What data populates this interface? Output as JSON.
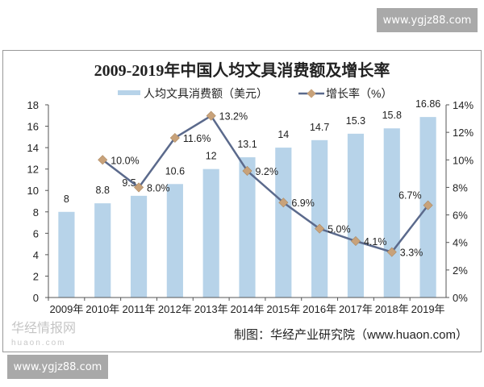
{
  "watermark": "www.ygjz88.com",
  "chart_data": {
    "type": "bar+line",
    "title": "2009-2019年中国人均文具消费额及增长率",
    "categories": [
      "2009年",
      "2010年",
      "2011年",
      "2012年",
      "2013年",
      "2014年",
      "2015年",
      "2016年",
      "2017年",
      "2018年",
      "2019年"
    ],
    "series": [
      {
        "name": "人均文具消费额（美元）",
        "type": "bar",
        "axis": "left",
        "color": "#b7d3e9",
        "values": [
          8,
          8.8,
          9.5,
          10.6,
          12,
          13.1,
          14,
          14.7,
          15.3,
          15.8,
          16.86
        ],
        "labels": [
          "8",
          "8.8",
          "9.5",
          "10.6",
          "12",
          "13.1",
          "14",
          "14.7",
          "15.3",
          "15.8",
          "16.86"
        ]
      },
      {
        "name": "增长率（%）",
        "type": "line",
        "axis": "right",
        "color": "#5b6a8c",
        "marker_color": "#c8a27a",
        "values": [
          null,
          10.0,
          8.0,
          11.6,
          13.2,
          9.2,
          6.9,
          5.0,
          4.1,
          3.3,
          6.7
        ],
        "labels": [
          "",
          "10.0%",
          "8.0%",
          "11.6%",
          "13.2%",
          "9.2%",
          "6.9%",
          "5.0%",
          "4.1%",
          "3.3%",
          "6.7%"
        ]
      }
    ],
    "y_left": {
      "range": [
        0,
        18
      ],
      "ticks": [
        "0",
        "2",
        "4",
        "6",
        "8",
        "10",
        "12",
        "14",
        "16",
        "18"
      ]
    },
    "y_right": {
      "range": [
        0,
        14
      ],
      "ticks": [
        "0%",
        "2%",
        "4%",
        "6%",
        "8%",
        "10%",
        "12%",
        "14%"
      ]
    },
    "grid": false,
    "legend": "top",
    "source": "制图：华经产业研究院（www.huaon.com）",
    "logo_watermark": "华经情报网 huaon.com"
  }
}
